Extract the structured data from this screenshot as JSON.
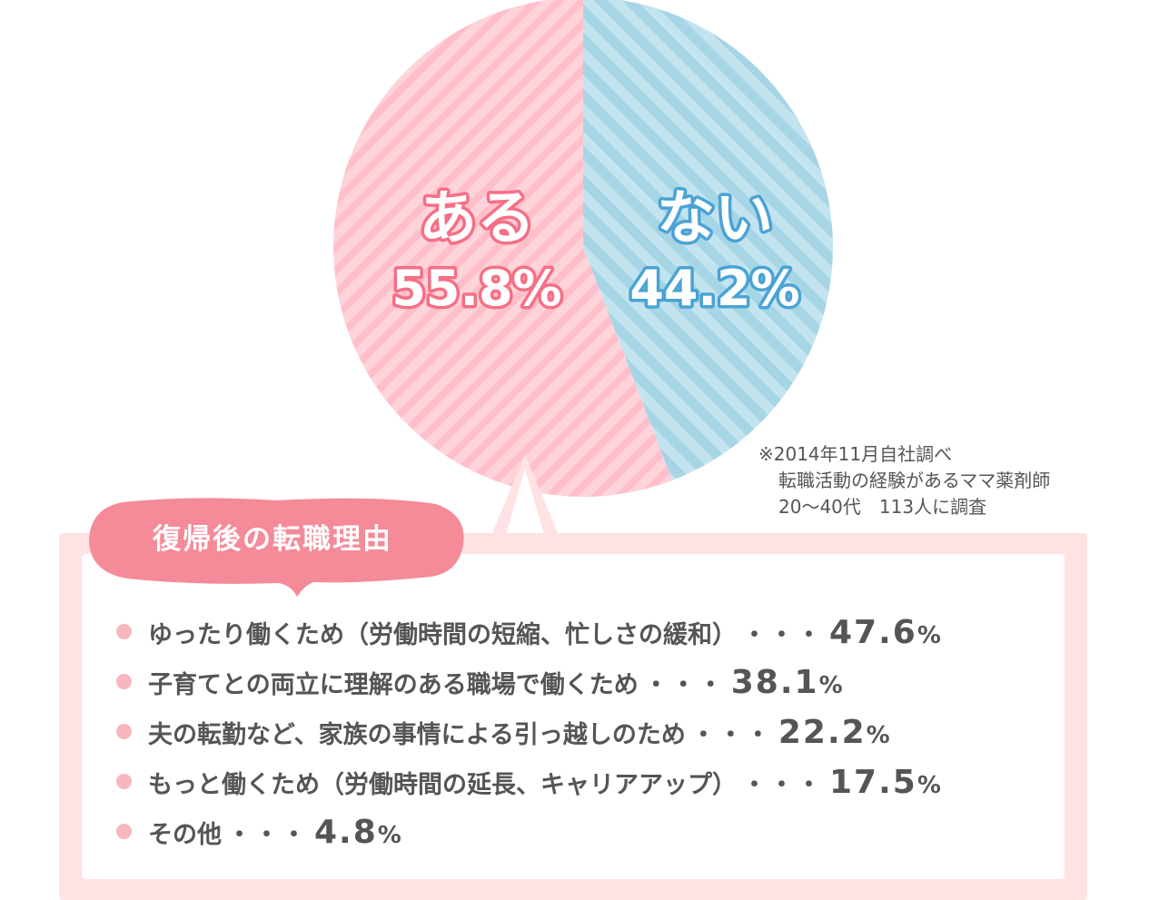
{
  "chart_data": {
    "type": "pie",
    "slices": [
      {
        "label": "ある",
        "value": 55.8,
        "value_text": "55.8%",
        "color": "#ffc7d0",
        "stroke": "#f56f85"
      },
      {
        "label": "ない",
        "value": 44.2,
        "value_text": "44.2%",
        "color": "#aad8e8",
        "stroke": "#4aa3d4"
      }
    ]
  },
  "note": {
    "lines": [
      "※2014年11月自社調べ",
      "転職活動の経験があるママ薬剤師",
      "20～40代　113人に調査"
    ]
  },
  "reasons_panel": {
    "title": "復帰後の転職理由",
    "separator": "・・・",
    "items": [
      {
        "label": "ゆったり働くため（労働時間の短縮、忙しさの緩和）",
        "percent": "47.6",
        "unit": "%"
      },
      {
        "label": "子育てとの両立に理解のある職場で働くため",
        "percent": "38.1",
        "unit": "%"
      },
      {
        "label": "夫の転勤など、家族の事情による引っ越しのため",
        "percent": "22.2",
        "unit": "%"
      },
      {
        "label": "もっと働くため（労働時間の延長、キャリアアップ）",
        "percent": "17.5",
        "unit": "%"
      },
      {
        "label": "その他",
        "percent": "4.8",
        "unit": "%"
      }
    ]
  },
  "colors": {
    "panel_bg": "#ffe2e4",
    "bubble": "#f58a98",
    "bullet": "#f8b6bd",
    "text": "#555555"
  }
}
